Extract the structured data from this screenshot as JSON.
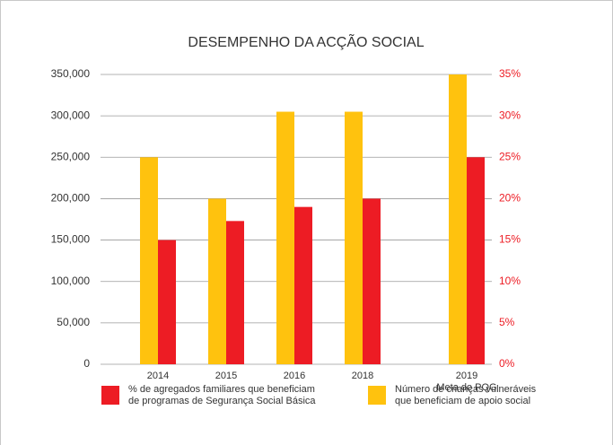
{
  "chart_data": {
    "type": "bar",
    "title": "DESEMPENHO DA ACÇÃO SOCIAL",
    "categories": [
      "2014",
      "2015",
      "2016",
      "2018",
      "2019\nMeta do PQG"
    ],
    "series": [
      {
        "name": "Número de crianças vulneráveis\nque beneficiam de apoio social",
        "color": "#ffc20e",
        "values": [
          250000,
          200000,
          305000,
          305000,
          350000
        ]
      },
      {
        "name": "% de agregados familiares que beneficiam\nde programas de Segurança Social Básica",
        "color": "#ed1c24",
        "axis": "y2",
        "values": [
          15,
          17.3,
          19,
          20,
          25
        ]
      }
    ],
    "ylim": [
      0,
      350000
    ],
    "yticks": [
      0,
      {
        "value": 50000,
        "label": "50,000"
      },
      {
        "value": 100000,
        "label": "100,000"
      },
      {
        "value": 150000,
        "label": "150,000"
      },
      {
        "value": 200000,
        "label": "200,000"
      },
      {
        "value": 250000,
        "label": "250,000"
      },
      {
        "value": 300000,
        "label": "300,000"
      },
      {
        "value": 350000,
        "label": "350,000"
      }
    ],
    "y2lim": [
      0,
      35
    ],
    "y2ticks": [
      {
        "value": 0,
        "label": "0%"
      },
      {
        "value": 5,
        "label": "5%"
      },
      {
        "value": 10,
        "label": "10%"
      },
      {
        "value": 15,
        "label": "15%"
      },
      {
        "value": 20,
        "label": "20%"
      },
      {
        "value": 25,
        "label": "25%"
      },
      {
        "value": 30,
        "label": "30%"
      },
      {
        "value": 35,
        "label": "35%"
      }
    ],
    "y2color": "#ed1c24",
    "grid": true
  }
}
